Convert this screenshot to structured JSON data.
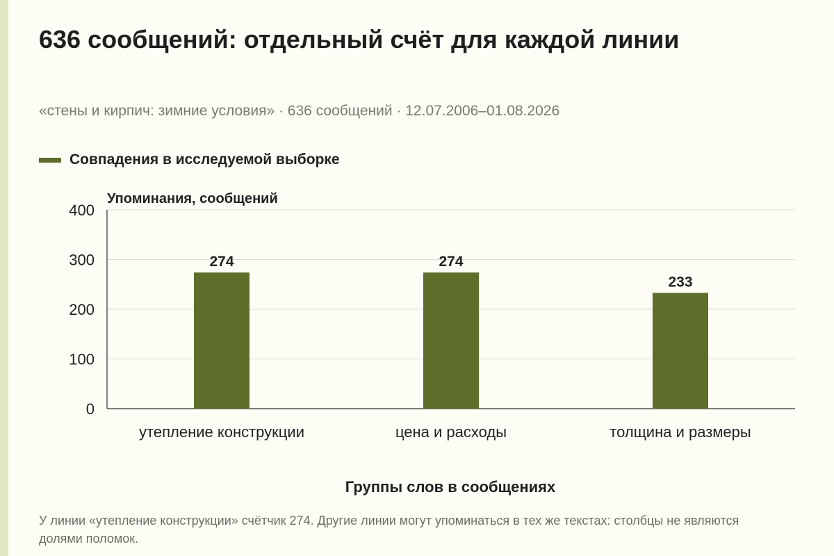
{
  "title": "636 сообщений: отдельный счёт для каждой линии",
  "subtitle": "«стены и кирпич: зимние условия» · 636 сообщений · 12.07.2006–01.08.2026",
  "legend": {
    "label": "Совпадения в исследуемой выборке"
  },
  "footnote": "У линии «утепление конструкции» счётчик 274. Другие линии могут упоминаться в тех же текстах: столбцы не являются долями поломок.",
  "colors": {
    "bar": "#5c6e2a",
    "background": "#fdfcf5",
    "gridline": "#dcdcd2",
    "accent_strip": "#e3e8c4"
  },
  "chart_data": {
    "type": "bar",
    "categories": [
      "утепление конструкции",
      "цена и расходы",
      "толщина и размеры"
    ],
    "series": [
      {
        "name": "Совпадения в исследуемой выборке",
        "values": [
          274,
          274,
          233
        ]
      }
    ],
    "ylabel": "Упоминания, сообщений",
    "xlabel": "Группы слов в сообщениях",
    "ylim": [
      0,
      400
    ],
    "yticks": [
      0,
      100,
      200,
      300,
      400
    ],
    "grid": true,
    "data_labels": true,
    "legend_position": "top-left"
  }
}
